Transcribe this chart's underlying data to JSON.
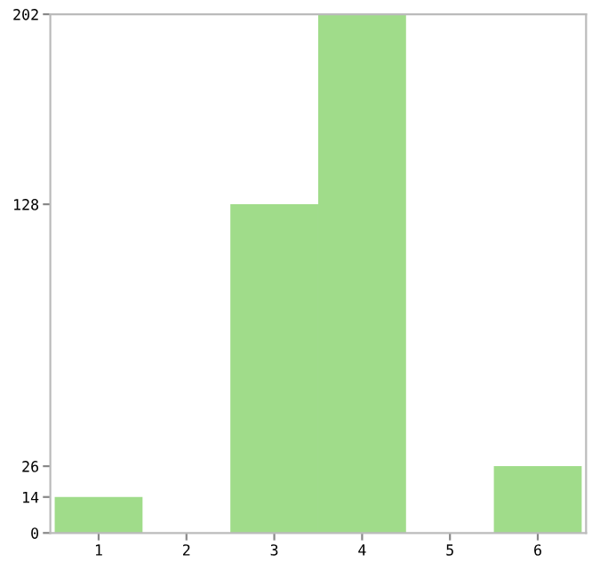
{
  "chart_data": {
    "type": "bar",
    "categories": [
      "1",
      "2",
      "3",
      "4",
      "5",
      "6"
    ],
    "values": [
      14,
      0,
      128,
      202,
      0,
      26
    ],
    "color": "#a0dc8a",
    "ylim": [
      0,
      202
    ],
    "yticks": [
      0,
      14,
      26,
      128,
      202
    ],
    "grid": false
  }
}
